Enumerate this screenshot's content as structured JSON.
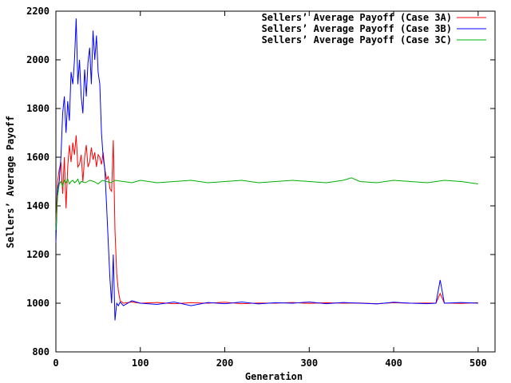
{
  "chart_data": {
    "type": "line",
    "title": "",
    "xlabel": "Generation",
    "ylabel": "Sellers’ Average Payoff",
    "xlim": [
      0,
      520
    ],
    "ylim": [
      800,
      2200
    ],
    "xticks": [
      0,
      100,
      200,
      300,
      400,
      500
    ],
    "yticks": [
      800,
      1000,
      1200,
      1400,
      1600,
      1800,
      2000,
      2200
    ],
    "grid": false,
    "legend_position": "top-right",
    "series": [
      {
        "name": "Sellers’ Average Payoff (Case 3A)",
        "color": "#ff0000",
        "x": [
          0,
          2,
          4,
          6,
          8,
          10,
          12,
          14,
          16,
          18,
          20,
          22,
          24,
          26,
          28,
          30,
          32,
          34,
          36,
          38,
          40,
          42,
          44,
          46,
          48,
          50,
          52,
          54,
          56,
          58,
          60,
          62,
          64,
          66,
          68,
          70,
          72,
          74,
          76,
          80,
          90,
          100,
          120,
          140,
          160,
          180,
          200,
          220,
          240,
          260,
          280,
          300,
          320,
          340,
          360,
          380,
          400,
          420,
          440,
          450,
          455,
          460,
          480,
          500
        ],
        "y": [
          1330,
          1500,
          1550,
          1580,
          1450,
          1600,
          1390,
          1560,
          1650,
          1580,
          1660,
          1610,
          1690,
          1560,
          1570,
          1610,
          1500,
          1600,
          1650,
          1560,
          1580,
          1640,
          1590,
          1620,
          1560,
          1610,
          1600,
          1570,
          1620,
          1550,
          1510,
          1520,
          1470,
          1460,
          1670,
          1300,
          1120,
          1050,
          1010,
          1000,
          1005,
          1000,
          1003,
          998,
          1002,
          1000,
          1004,
          998,
          1001,
          1000,
          1003,
          999,
          1002,
          1000,
          1001,
          998,
          1002,
          1000,
          1001,
          1000,
          1040,
          1001,
          999,
          1002
        ]
      },
      {
        "name": "Sellers’ Average Payoff (Case 3B)",
        "color": "#0000ff",
        "x": [
          0,
          2,
          4,
          6,
          8,
          10,
          12,
          14,
          16,
          18,
          20,
          22,
          24,
          26,
          28,
          30,
          32,
          34,
          36,
          38,
          40,
          42,
          44,
          46,
          48,
          50,
          52,
          54,
          56,
          58,
          60,
          62,
          64,
          66,
          68,
          70,
          72,
          74,
          76,
          80,
          90,
          100,
          120,
          140,
          160,
          180,
          200,
          220,
          240,
          260,
          280,
          300,
          320,
          340,
          360,
          380,
          400,
          420,
          440,
          450,
          455,
          460,
          480,
          500
        ],
        "y": [
          1250,
          1470,
          1500,
          1600,
          1780,
          1850,
          1700,
          1830,
          1750,
          1950,
          1900,
          2000,
          2170,
          1900,
          2000,
          1850,
          1780,
          1960,
          1850,
          1990,
          2050,
          1900,
          2120,
          2000,
          2100,
          1950,
          1900,
          1700,
          1600,
          1550,
          1400,
          1250,
          1100,
          1000,
          1200,
          930,
          1000,
          990,
          1005,
          990,
          1010,
          1000,
          995,
          1005,
          990,
          1003,
          998,
          1005,
          997,
          1002,
          1000,
          1005,
          998,
          1003,
          1000,
          997,
          1004,
          1000,
          998,
          1000,
          1095,
          1000,
          1003,
          1000
        ]
      },
      {
        "name": "Sellers’ Average Payoff (Case 3C)",
        "color": "#00b000",
        "x": [
          0,
          2,
          4,
          6,
          8,
          10,
          12,
          14,
          16,
          18,
          20,
          22,
          24,
          26,
          28,
          30,
          35,
          40,
          45,
          50,
          55,
          60,
          65,
          70,
          80,
          90,
          100,
          120,
          140,
          160,
          180,
          200,
          220,
          240,
          260,
          280,
          300,
          320,
          340,
          350,
          360,
          380,
          400,
          420,
          440,
          460,
          480,
          500
        ],
        "y": [
          1300,
          1440,
          1490,
          1500,
          1480,
          1505,
          1495,
          1510,
          1490,
          1500,
          1505,
          1495,
          1500,
          1510,
          1490,
          1500,
          1495,
          1505,
          1500,
          1490,
          1505,
          1500,
          1495,
          1505,
          1500,
          1495,
          1505,
          1495,
          1500,
          1505,
          1495,
          1500,
          1505,
          1495,
          1500,
          1505,
          1500,
          1495,
          1505,
          1515,
          1500,
          1495,
          1505,
          1500,
          1495,
          1505,
          1500,
          1490
        ]
      }
    ]
  }
}
